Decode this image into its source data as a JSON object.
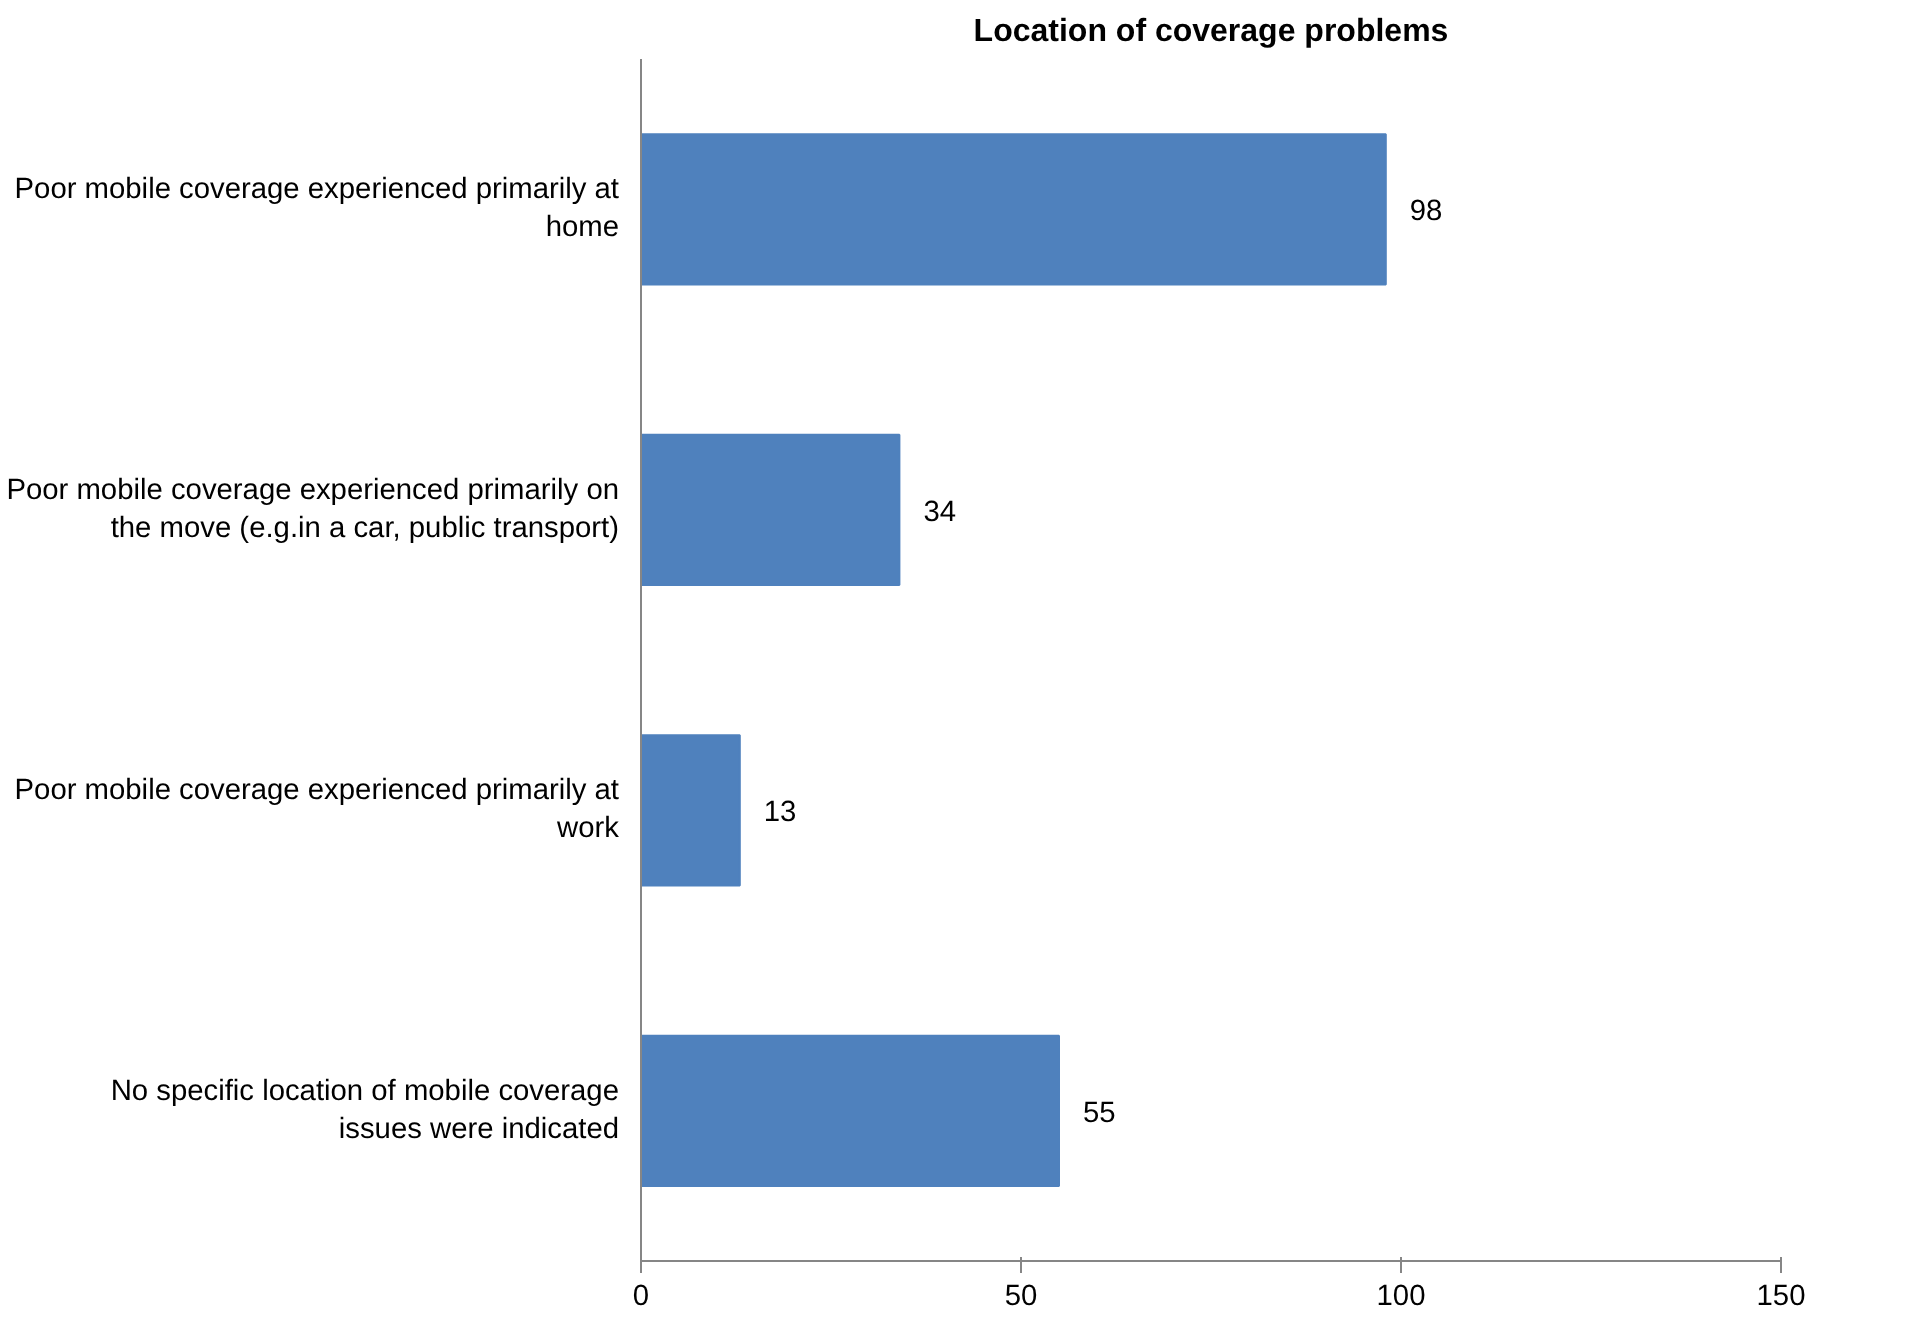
{
  "chart_data": {
    "type": "bar",
    "orientation": "horizontal",
    "title": "Location of coverage problems",
    "categories": [
      "Poor mobile coverage experienced primarily at home",
      "Poor mobile coverage experienced primarily on the move (e.g.in a car, public transport)",
      "Poor mobile coverage experienced primarily at work",
      "No specific location of mobile coverage issues were indicated"
    ],
    "values": [
      98,
      34,
      13,
      55
    ],
    "color": "#4f81bd",
    "data_labels": true,
    "xlim": [
      0,
      150
    ],
    "xticks": [
      0,
      50,
      100,
      150
    ],
    "grid": false
  }
}
